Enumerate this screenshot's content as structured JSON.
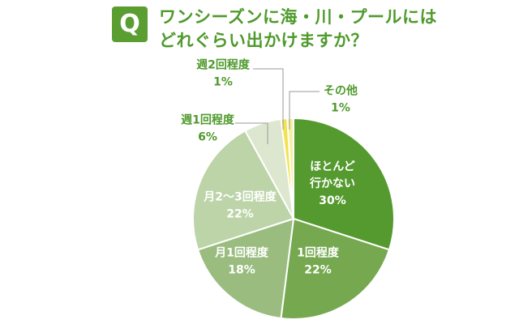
{
  "header": {
    "badge": "Q",
    "title_line1": "ワンシーズンに海・川・プールには",
    "title_line2": "どれぐらい出かけますか？"
  },
  "chart_data": {
    "type": "pie",
    "title": "ワンシーズンに海・川・プールにはどれぐらい出かけますか？",
    "start_angle_deg": 0,
    "direction": "clockwise",
    "slices": [
      {
        "lines": [
          "ほとんど",
          "行かない",
          "30%"
        ],
        "value": 30,
        "color": "#559a2e",
        "label_color": "#ffffff"
      },
      {
        "lines": [
          "1回程度",
          "22%"
        ],
        "value": 22,
        "color": "#75a84f",
        "label_color": "#ffffff"
      },
      {
        "lines": [
          "月1回程度",
          "18%"
        ],
        "value": 18,
        "color": "#9abd7f",
        "label_color": "#ffffff"
      },
      {
        "lines": [
          "月2～3回程度",
          "22%"
        ],
        "value": 22,
        "color": "#bcd4a7",
        "label_color": "#ffffff"
      },
      {
        "lines": [
          "週1回程度",
          "6%"
        ],
        "value": 6,
        "color": "#dde7cf",
        "label_color": "#4f9a2c"
      },
      {
        "lines": [
          "週2回程度",
          "1%"
        ],
        "value": 1,
        "color": "#f3e24e",
        "label_color": "#4f9a2c"
      },
      {
        "lines": [
          "その他",
          "1%"
        ],
        "value": 1,
        "color": "#f6ef9c",
        "label_color": "#4f9a2c"
      }
    ]
  }
}
